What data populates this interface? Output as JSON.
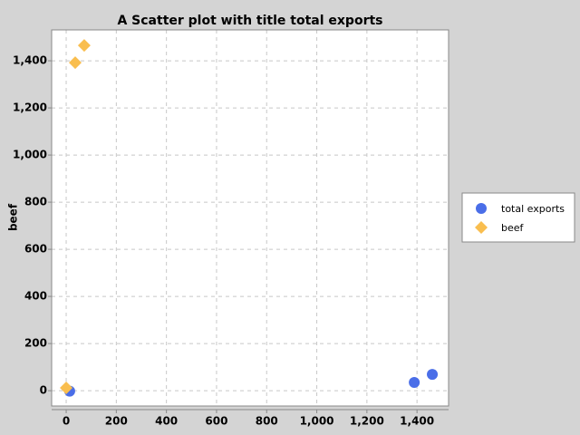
{
  "chart_data": {
    "type": "scatter",
    "title": "A Scatter plot with title total exports",
    "y_label": "beef",
    "series": [
      {
        "name": "total exports",
        "color": "#4a6ee8",
        "marker": "circle",
        "x": [
          14,
          1389,
          1461
        ],
        "values": [
          -2,
          35,
          69
        ]
      },
      {
        "name": "beef",
        "color": "#f9be4f",
        "marker": "diamond",
        "x": [
          0,
          36,
          72
        ],
        "values": [
          12,
          1392,
          1465
        ]
      }
    ],
    "xlim": [
      -58,
      1526
    ],
    "ylim": [
      -65,
      1531
    ],
    "xticks": [
      0,
      200,
      400,
      600,
      800,
      {
        "value": 1000,
        "label": "1,000"
      },
      {
        "value": 1200,
        "label": "1,200"
      },
      {
        "value": 1400,
        "label": "1,400"
      }
    ],
    "yticks": [
      0,
      200,
      400,
      600,
      800,
      {
        "value": 1000,
        "label": "1,000"
      },
      {
        "value": 1200,
        "label": "1,200"
      },
      {
        "value": 1400,
        "label": "1,400"
      }
    ],
    "grid": true,
    "legend": "right"
  }
}
